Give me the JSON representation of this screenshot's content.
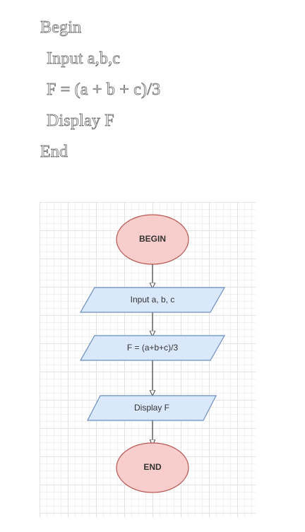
{
  "pseudocode": {
    "lines": [
      "Begin",
      "Input a,b,c",
      "F = (a + b + c)/3",
      "Display F",
      "End"
    ]
  },
  "flowchart": {
    "start_label": "BEGIN",
    "input_label": "Input a, b, c",
    "process_label": "F = (a+b+c)/3",
    "output_label": "Display F",
    "end_label": "END",
    "colors": {
      "terminal_fill": "#f8cecc",
      "terminal_stroke": "#b85450",
      "io_fill": "#dae8fc",
      "io_stroke": "#6c8ebf",
      "connector": "#444444"
    }
  }
}
